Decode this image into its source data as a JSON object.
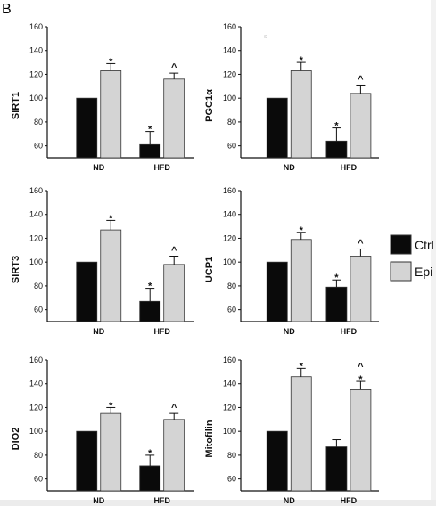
{
  "panel_letter": "B",
  "stray_mark": "s",
  "legend": {
    "entries": [
      {
        "label": "Ctrl",
        "color": "#0a0a0a"
      },
      {
        "label": "Epi",
        "color": "#d4d4d4"
      }
    ]
  },
  "colors": {
    "ctrl": "#0a0a0a",
    "epi": "#d4d4d4",
    "axis": "#111111",
    "edge": "#333333"
  },
  "chart_data": [
    {
      "type": "bar",
      "ylabel": "SIRT1",
      "categories": [
        "ND",
        "HFD"
      ],
      "ylim": [
        50,
        160
      ],
      "yticks": [
        60,
        80,
        100,
        120,
        140,
        160
      ],
      "series": [
        {
          "name": "Ctrl",
          "values": [
            100,
            61
          ],
          "errors": [
            0,
            11
          ]
        },
        {
          "name": "Epi",
          "values": [
            123,
            116
          ],
          "errors": [
            6,
            5
          ]
        }
      ],
      "annotations": [
        {
          "category": "HFD",
          "series": "Ctrl",
          "marks": [
            "*"
          ]
        },
        {
          "category": "ND",
          "series": "Epi",
          "marks": [
            "*"
          ]
        },
        {
          "category": "HFD",
          "series": "Epi",
          "marks": [
            "^"
          ]
        }
      ]
    },
    {
      "type": "bar",
      "ylabel": "PGC1α",
      "categories": [
        "ND",
        "HFD"
      ],
      "ylim": [
        50,
        160
      ],
      "yticks": [
        60,
        80,
        100,
        120,
        140,
        160
      ],
      "series": [
        {
          "name": "Ctrl",
          "values": [
            100,
            64
          ],
          "errors": [
            0,
            11
          ]
        },
        {
          "name": "Epi",
          "values": [
            123,
            104
          ],
          "errors": [
            7,
            7
          ]
        }
      ],
      "annotations": [
        {
          "category": "HFD",
          "series": "Ctrl",
          "marks": [
            "*"
          ]
        },
        {
          "category": "ND",
          "series": "Epi",
          "marks": [
            "*"
          ]
        },
        {
          "category": "HFD",
          "series": "Epi",
          "marks": [
            "^"
          ]
        }
      ]
    },
    {
      "type": "bar",
      "ylabel": "SIRT3",
      "categories": [
        "ND",
        "HFD"
      ],
      "ylim": [
        50,
        160
      ],
      "yticks": [
        60,
        80,
        100,
        120,
        140,
        160
      ],
      "series": [
        {
          "name": "Ctrl",
          "values": [
            100,
            67
          ],
          "errors": [
            0,
            11
          ]
        },
        {
          "name": "Epi",
          "values": [
            127,
            98
          ],
          "errors": [
            8,
            7
          ]
        }
      ],
      "annotations": [
        {
          "category": "HFD",
          "series": "Ctrl",
          "marks": [
            "*"
          ]
        },
        {
          "category": "ND",
          "series": "Epi",
          "marks": [
            "*"
          ]
        },
        {
          "category": "HFD",
          "series": "Epi",
          "marks": [
            "^"
          ]
        }
      ]
    },
    {
      "type": "bar",
      "ylabel": "UCP1",
      "categories": [
        "ND",
        "HFD"
      ],
      "ylim": [
        50,
        160
      ],
      "yticks": [
        60,
        80,
        100,
        120,
        140,
        160
      ],
      "series": [
        {
          "name": "Ctrl",
          "values": [
            100,
            79
          ],
          "errors": [
            0,
            6
          ]
        },
        {
          "name": "Epi",
          "values": [
            119,
            105
          ],
          "errors": [
            6,
            6
          ]
        }
      ],
      "annotations": [
        {
          "category": "HFD",
          "series": "Ctrl",
          "marks": [
            "*"
          ]
        },
        {
          "category": "ND",
          "series": "Epi",
          "marks": [
            "*"
          ]
        },
        {
          "category": "HFD",
          "series": "Epi",
          "marks": [
            "^"
          ]
        }
      ]
    },
    {
      "type": "bar",
      "ylabel": "DIO2",
      "categories": [
        "ND",
        "HFD"
      ],
      "ylim": [
        50,
        160
      ],
      "yticks": [
        60,
        80,
        100,
        120,
        140,
        160
      ],
      "series": [
        {
          "name": "Ctrl",
          "values": [
            100,
            71
          ],
          "errors": [
            0,
            9
          ]
        },
        {
          "name": "Epi",
          "values": [
            115,
            110
          ],
          "errors": [
            5,
            5
          ]
        }
      ],
      "annotations": [
        {
          "category": "HFD",
          "series": "Ctrl",
          "marks": [
            "*"
          ]
        },
        {
          "category": "ND",
          "series": "Epi",
          "marks": [
            "*"
          ]
        },
        {
          "category": "HFD",
          "series": "Epi",
          "marks": [
            "^"
          ]
        }
      ]
    },
    {
      "type": "bar",
      "ylabel": "Mitofilin",
      "categories": [
        "ND",
        "HFD"
      ],
      "ylim": [
        50,
        160
      ],
      "yticks": [
        60,
        80,
        100,
        120,
        140,
        160
      ],
      "series": [
        {
          "name": "Ctrl",
          "values": [
            100,
            87
          ],
          "errors": [
            0,
            6
          ]
        },
        {
          "name": "Epi",
          "values": [
            146,
            135
          ],
          "errors": [
            7,
            7
          ]
        }
      ],
      "annotations": [
        {
          "category": "ND",
          "series": "Epi",
          "marks": [
            "*"
          ]
        },
        {
          "category": "HFD",
          "series": "Epi",
          "marks": [
            "^",
            "*"
          ]
        }
      ]
    }
  ]
}
